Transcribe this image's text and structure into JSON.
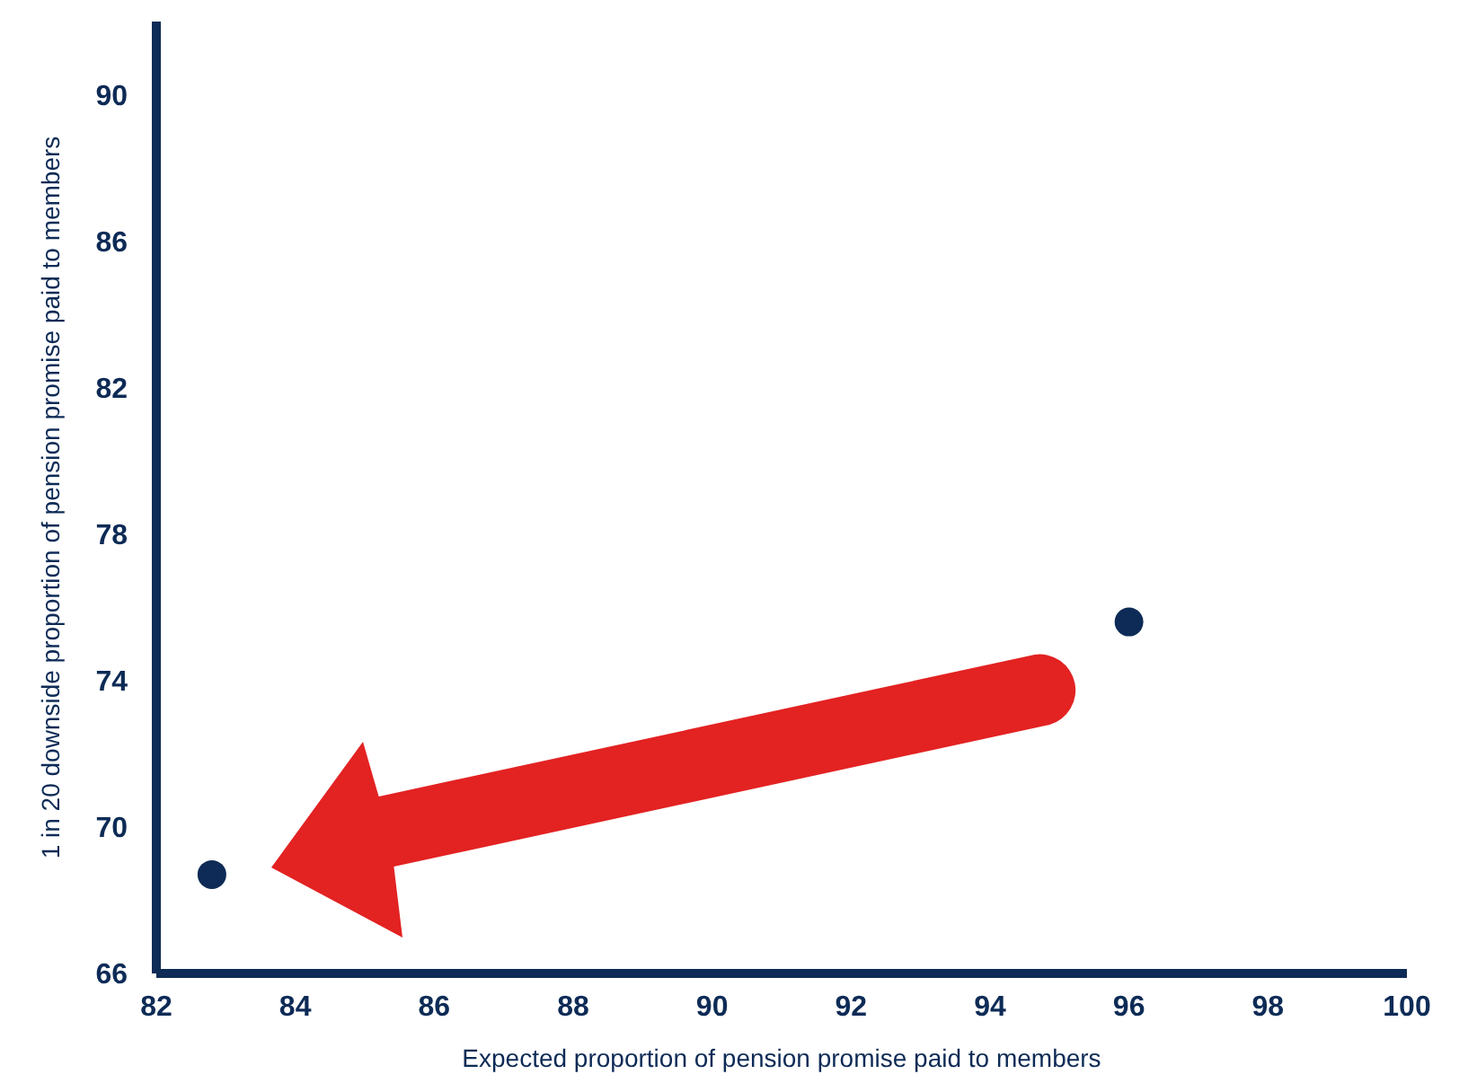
{
  "chart_data": {
    "type": "scatter",
    "xlabel": "Expected proportion of pension promise paid to members",
    "ylabel": "1 in 20 downside proportion of pension promise paid to members",
    "x": [
      82.8,
      96
    ],
    "values": [
      68.7,
      75.6
    ],
    "color": "#0d2b56",
    "marker": "circle",
    "xlim": [
      82,
      100
    ],
    "xticks": [
      82,
      84,
      86,
      88,
      90,
      92,
      94,
      96,
      98,
      100
    ],
    "ylim": [
      66,
      92
    ],
    "yticks": [
      66,
      70,
      74,
      78,
      82,
      86,
      90
    ],
    "grid": false,
    "legend": false
  }
}
